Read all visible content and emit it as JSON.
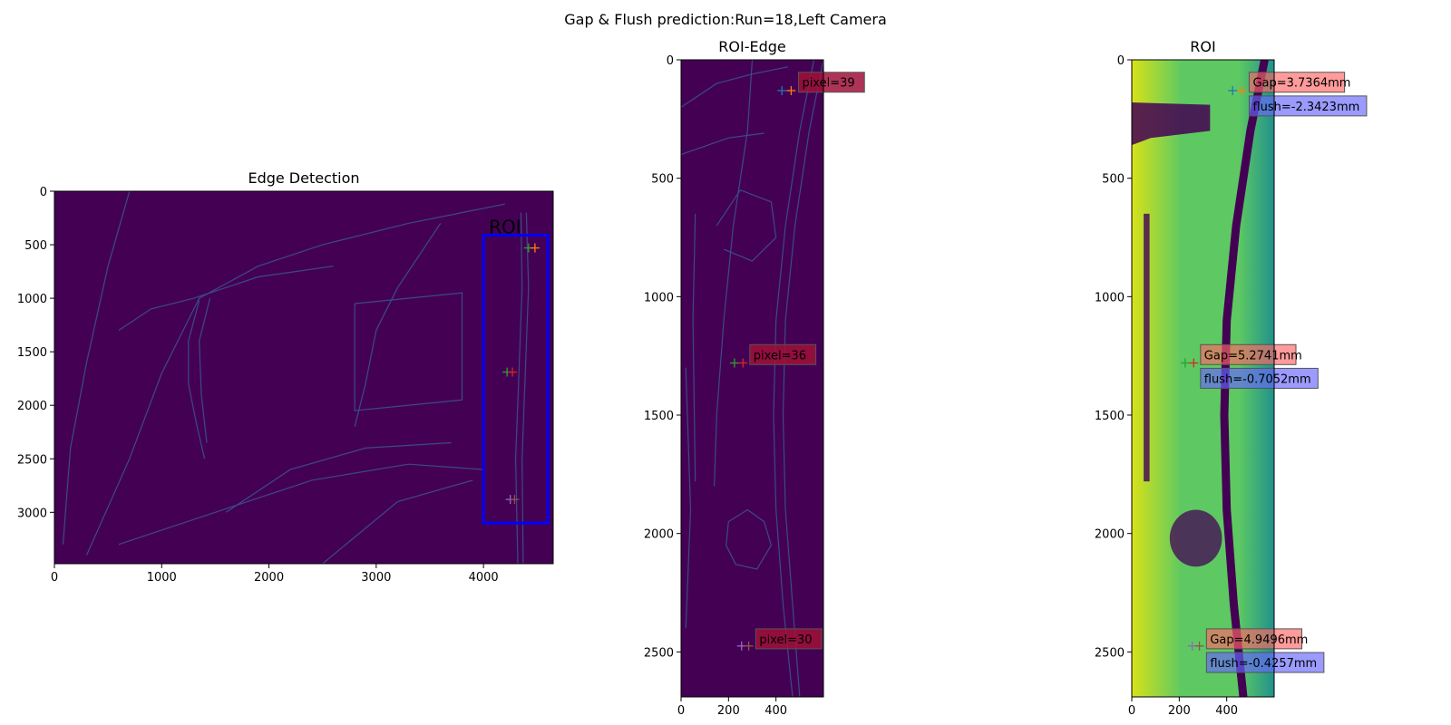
{
  "suptitle": "Gap & Flush prediction:Run=18,Left Camera",
  "colors": {
    "dark_bg": "#440154",
    "edge_line": "#3b528b",
    "roi_box": "#0000ff",
    "gap_box": "#ff6666",
    "pixel_box": "#a0103a",
    "flush_box": "#6666ff",
    "marker_blue": "#1f77b4",
    "marker_orange": "#ff7f0e",
    "marker_green": "#2ca02c",
    "marker_red": "#d62728",
    "marker_purple": "#9467bd",
    "marker_brown": "#8c564b",
    "viridis_yellow": "#d8e219",
    "viridis_green": "#5ec962",
    "viridis_teal": "#21918c",
    "viridis_purple": "#440154"
  },
  "chart_data": [
    {
      "id": "edge",
      "type": "image",
      "title": "Edge Detection",
      "xlim": [
        0,
        4650
      ],
      "ylim": [
        3480,
        0
      ],
      "xticks": [
        0,
        1000,
        2000,
        3000,
        4000
      ],
      "yticks": [
        0,
        500,
        1000,
        1500,
        2000,
        2500,
        3000
      ],
      "roi_box": {
        "x0": 4000,
        "y0": 410,
        "x1": 4600,
        "y1": 3100,
        "label": "ROI"
      },
      "markers": [
        {
          "x": 4420,
          "y": 530,
          "color": "marker_green"
        },
        {
          "x": 4480,
          "y": 530,
          "color": "marker_orange"
        },
        {
          "x": 4220,
          "y": 1690,
          "color": "marker_green"
        },
        {
          "x": 4270,
          "y": 1690,
          "color": "marker_red"
        },
        {
          "x": 4250,
          "y": 2880,
          "color": "marker_purple"
        },
        {
          "x": 4290,
          "y": 2880,
          "color": "marker_brown"
        }
      ],
      "annotations": []
    },
    {
      "id": "roi_edge",
      "type": "image",
      "title": "ROI-Edge",
      "xlim": [
        0,
        600
      ],
      "ylim": [
        2690,
        0
      ],
      "xticks": [
        0,
        200,
        400
      ],
      "yticks": [
        0,
        500,
        1000,
        1500,
        2000,
        2500
      ],
      "markers": [
        {
          "x": 425,
          "y": 130,
          "color": "marker_blue"
        },
        {
          "x": 464,
          "y": 130,
          "color": "marker_orange"
        },
        {
          "x": 225,
          "y": 1280,
          "color": "marker_green"
        },
        {
          "x": 261,
          "y": 1280,
          "color": "marker_red"
        },
        {
          "x": 255,
          "y": 2475,
          "color": "marker_purple"
        },
        {
          "x": 285,
          "y": 2475,
          "color": "marker_brown"
        }
      ],
      "annotations": [
        {
          "x": 510,
          "y": 110,
          "text": "pixel=39",
          "box": "pixel_box"
        },
        {
          "x": 305,
          "y": 1260,
          "text": "pixel=36",
          "box": "pixel_box"
        },
        {
          "x": 330,
          "y": 2460,
          "text": "pixel=30",
          "box": "pixel_box"
        }
      ]
    },
    {
      "id": "roi",
      "type": "image",
      "title": "ROI",
      "xlim": [
        0,
        600
      ],
      "ylim": [
        2690,
        0
      ],
      "xticks": [
        0,
        200,
        400
      ],
      "yticks": [
        0,
        500,
        1000,
        1500,
        2000,
        2500
      ],
      "markers": [
        {
          "x": 425,
          "y": 130,
          "color": "marker_blue"
        },
        {
          "x": 464,
          "y": 130,
          "color": "marker_orange"
        },
        {
          "x": 225,
          "y": 1280,
          "color": "marker_green"
        },
        {
          "x": 261,
          "y": 1280,
          "color": "marker_red"
        },
        {
          "x": 255,
          "y": 2475,
          "color": "marker_purple"
        },
        {
          "x": 285,
          "y": 2475,
          "color": "marker_brown"
        }
      ],
      "annotations": [
        {
          "x": 510,
          "y": 110,
          "text": "Gap=3.7364mm",
          "box": "gap_box"
        },
        {
          "x": 510,
          "y": 210,
          "text": "flush=-2.3423mm",
          "box": "flush_box"
        },
        {
          "x": 305,
          "y": 1260,
          "text": "Gap=5.2741mm",
          "box": "gap_box"
        },
        {
          "x": 305,
          "y": 1360,
          "text": "flush=-0.7052mm",
          "box": "flush_box"
        },
        {
          "x": 330,
          "y": 2460,
          "text": "Gap=4.9496mm",
          "box": "gap_box"
        },
        {
          "x": 330,
          "y": 2560,
          "text": "flush=-0.4257mm",
          "box": "flush_box"
        }
      ]
    }
  ]
}
